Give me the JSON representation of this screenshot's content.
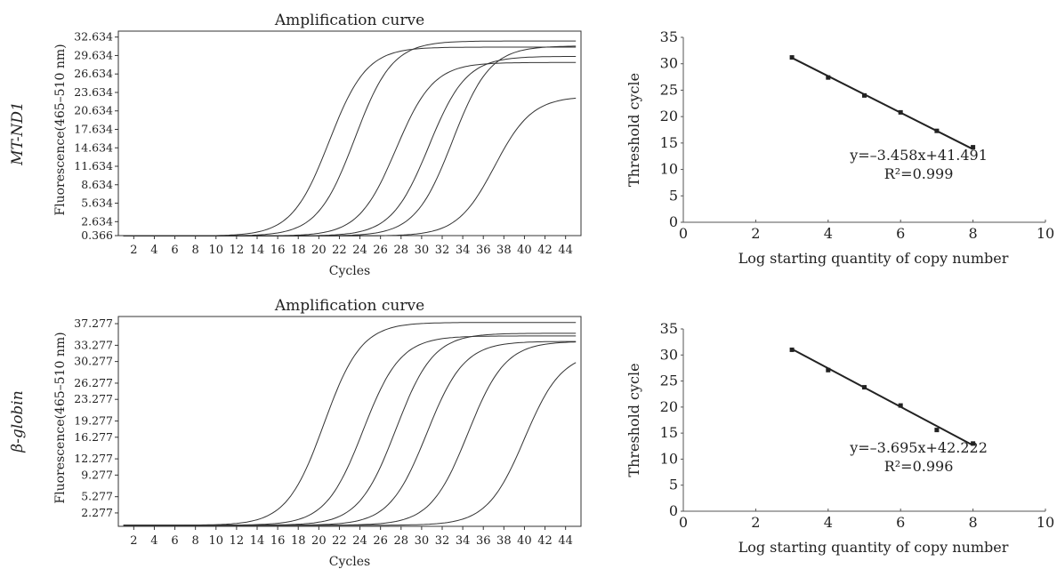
{
  "chart_data": [
    {
      "type": "line",
      "row_label": "MT-ND1",
      "title": "Amplification curve",
      "xlabel": "Cycles",
      "ylabel": "Fluorescence(465–510 nm)",
      "x_ticks": [
        2,
        4,
        6,
        8,
        10,
        12,
        14,
        16,
        18,
        20,
        22,
        24,
        26,
        28,
        30,
        32,
        34,
        36,
        38,
        40,
        42,
        44
      ],
      "xlim": [
        0.5,
        45.5
      ],
      "y_ticks": [
        "0.366",
        "2.634",
        "5.634",
        "8.634",
        "11.634",
        "14.634",
        "17.634",
        "20.634",
        "23.634",
        "26.634",
        "29.634",
        "32.634"
      ],
      "ylim": [
        0.366,
        33.6
      ],
      "grid": false,
      "curves": [
        {
          "threshold_cycle": 18.5,
          "plateau": 31.0,
          "baseline": 0.3
        },
        {
          "threshold_cycle": 21.0,
          "plateau": 32.0,
          "baseline": 0.3
        },
        {
          "threshold_cycle": 25.0,
          "plateau": 28.5,
          "baseline": 0.3
        },
        {
          "threshold_cycle": 28.2,
          "plateau": 29.5,
          "baseline": 0.3
        },
        {
          "threshold_cycle": 30.5,
          "plateau": 31.2,
          "baseline": 0.3
        },
        {
          "threshold_cycle": 34.6,
          "plateau": 23.0,
          "baseline": 0.3
        }
      ]
    },
    {
      "type": "scatter",
      "row_label": "MT-ND1",
      "xlabel": "Log starting quantity of copy number",
      "ylabel": "Threshold cycle",
      "x_ticks": [
        0,
        2,
        4,
        6,
        8,
        10
      ],
      "y_ticks": [
        0,
        5,
        10,
        15,
        20,
        25,
        30,
        35
      ],
      "xlim": [
        0,
        10
      ],
      "ylim": [
        0,
        35
      ],
      "points": [
        {
          "x": 3,
          "y": 31.2
        },
        {
          "x": 4,
          "y": 27.4
        },
        {
          "x": 5,
          "y": 24.0
        },
        {
          "x": 6,
          "y": 20.8
        },
        {
          "x": 7,
          "y": 17.3
        },
        {
          "x": 8,
          "y": 14.2
        }
      ],
      "fit": {
        "slope": -3.458,
        "intercept": 41.491,
        "x_range": [
          3,
          8
        ]
      },
      "equation": "y=–3.458x+41.491",
      "r_squared": "R²=0.999"
    },
    {
      "type": "line",
      "row_label": "β-globin",
      "title": "Amplification curve",
      "xlabel": "Cycles",
      "ylabel": "Fluorescence(465–510 nm)",
      "x_ticks": [
        2,
        4,
        6,
        8,
        10,
        12,
        14,
        16,
        18,
        20,
        22,
        24,
        26,
        28,
        30,
        32,
        34,
        36,
        38,
        40,
        42,
        44
      ],
      "xlim": [
        0.5,
        45.5
      ],
      "y_ticks": [
        "2.277",
        "5.277",
        "9.277",
        "12.277",
        "16.277",
        "19.277",
        "23.277",
        "26.277",
        "30.277",
        "33.277",
        "37.277"
      ],
      "ylim": [
        -0.2,
        38.6
      ],
      "grid": false,
      "curves": [
        {
          "threshold_cycle": 18.0,
          "plateau": 37.5,
          "baseline": 0.0
        },
        {
          "threshold_cycle": 21.8,
          "plateau": 35.0,
          "baseline": 0.0
        },
        {
          "threshold_cycle": 25.0,
          "plateau": 35.5,
          "baseline": 0.0
        },
        {
          "threshold_cycle": 28.0,
          "plateau": 34.0,
          "baseline": 0.0
        },
        {
          "threshold_cycle": 32.0,
          "plateau": 34.0,
          "baseline": 0.0
        },
        {
          "threshold_cycle": 37.5,
          "plateau": 32.0,
          "baseline": 0.0
        }
      ]
    },
    {
      "type": "scatter",
      "row_label": "β-globin",
      "xlabel": "Log starting quantity of copy number",
      "ylabel": "Threshold cycle",
      "x_ticks": [
        0,
        2,
        4,
        6,
        8,
        10
      ],
      "y_ticks": [
        0,
        5,
        10,
        15,
        20,
        25,
        30,
        35
      ],
      "xlim": [
        0,
        10
      ],
      "ylim": [
        0,
        35
      ],
      "points": [
        {
          "x": 3,
          "y": 31.0
        },
        {
          "x": 4,
          "y": 27.1
        },
        {
          "x": 5,
          "y": 23.8
        },
        {
          "x": 6,
          "y": 20.3
        },
        {
          "x": 7,
          "y": 15.6
        },
        {
          "x": 8,
          "y": 13.0
        }
      ],
      "fit": {
        "slope": -3.695,
        "intercept": 42.222,
        "x_range": [
          3,
          8
        ]
      },
      "equation": "y=–3.695x+42.222",
      "r_squared": "R²=0.996"
    }
  ]
}
